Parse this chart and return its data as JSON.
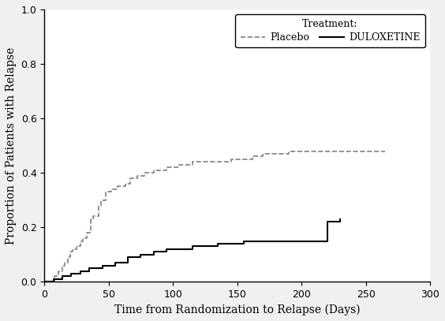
{
  "placebo_x": [
    0,
    7,
    8,
    10,
    11,
    12,
    14,
    15,
    16,
    17,
    18,
    19,
    20,
    21,
    22,
    24,
    25,
    27,
    28,
    29,
    30,
    32,
    33,
    35,
    36,
    37,
    38,
    40,
    42,
    43,
    44,
    46,
    48,
    50,
    52,
    55,
    57,
    60,
    63,
    65,
    67,
    70,
    72,
    75,
    78,
    80,
    85,
    90,
    95,
    100,
    105,
    110,
    115,
    120,
    125,
    130,
    135,
    140,
    145,
    150,
    155,
    160,
    162,
    165,
    170,
    175,
    180,
    185,
    190,
    195,
    200,
    205,
    210,
    215,
    220,
    230,
    240,
    250,
    260,
    265
  ],
  "placebo_y": [
    0.0,
    0.0,
    0.02,
    0.02,
    0.04,
    0.04,
    0.06,
    0.06,
    0.07,
    0.07,
    0.09,
    0.09,
    0.11,
    0.11,
    0.12,
    0.12,
    0.13,
    0.13,
    0.15,
    0.15,
    0.16,
    0.16,
    0.18,
    0.18,
    0.23,
    0.23,
    0.24,
    0.24,
    0.28,
    0.28,
    0.3,
    0.3,
    0.33,
    0.33,
    0.34,
    0.34,
    0.35,
    0.35,
    0.36,
    0.36,
    0.38,
    0.38,
    0.39,
    0.39,
    0.4,
    0.4,
    0.41,
    0.41,
    0.42,
    0.42,
    0.43,
    0.43,
    0.44,
    0.44,
    0.44,
    0.44,
    0.44,
    0.44,
    0.45,
    0.45,
    0.45,
    0.45,
    0.46,
    0.46,
    0.47,
    0.47,
    0.47,
    0.47,
    0.48,
    0.48,
    0.48,
    0.48,
    0.48,
    0.48,
    0.48,
    0.48,
    0.48,
    0.48,
    0.48,
    0.48
  ],
  "duloxetine_x": [
    0,
    5,
    7,
    10,
    14,
    18,
    21,
    25,
    28,
    30,
    35,
    40,
    45,
    50,
    55,
    60,
    65,
    70,
    75,
    80,
    85,
    90,
    95,
    100,
    105,
    110,
    115,
    120,
    125,
    130,
    135,
    140,
    145,
    150,
    155,
    160,
    165,
    170,
    175,
    180,
    185,
    190,
    195,
    200,
    205,
    210,
    215,
    220,
    225,
    230
  ],
  "duloxetine_y": [
    0.0,
    0.0,
    0.01,
    0.01,
    0.02,
    0.02,
    0.03,
    0.03,
    0.04,
    0.04,
    0.05,
    0.05,
    0.06,
    0.06,
    0.07,
    0.07,
    0.09,
    0.09,
    0.1,
    0.1,
    0.11,
    0.11,
    0.12,
    0.12,
    0.12,
    0.12,
    0.13,
    0.13,
    0.13,
    0.13,
    0.14,
    0.14,
    0.14,
    0.14,
    0.15,
    0.15,
    0.15,
    0.15,
    0.15,
    0.15,
    0.15,
    0.15,
    0.15,
    0.15,
    0.15,
    0.15,
    0.15,
    0.22,
    0.22,
    0.23
  ],
  "xlim": [
    0,
    300
  ],
  "ylim": [
    0,
    1.0
  ],
  "xticks": [
    0,
    50,
    100,
    150,
    200,
    250,
    300
  ],
  "yticks": [
    0.0,
    0.2,
    0.4,
    0.6,
    0.8,
    1.0
  ],
  "xlabel": "Time from Randomization to Relapse (Days)",
  "ylabel": "Proportion of Patients with Relapse",
  "placebo_color": "#808080",
  "duloxetine_color": "#000000",
  "legend_title": "Treatment:",
  "legend_placebo": "Placebo",
  "legend_duloxetine": "DULOXETINE",
  "background_color": "#ffffff",
  "figure_facecolor": "#f0f0f0"
}
